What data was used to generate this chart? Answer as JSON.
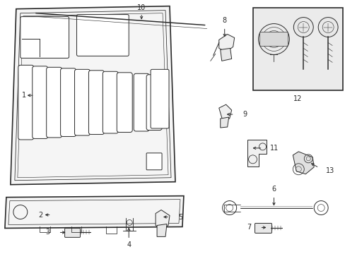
{
  "bg_color": "#ffffff",
  "line_color": "#2a2a2a",
  "figsize": [
    4.89,
    3.6
  ],
  "dpi": 100
}
